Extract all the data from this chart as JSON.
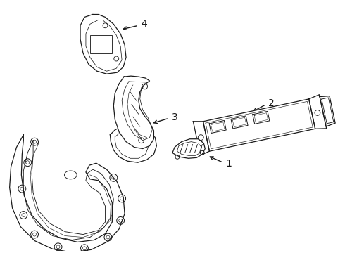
{
  "bg_color": "#ffffff",
  "line_color": "#1a1a1a",
  "line_width": 0.9,
  "fig_w": 4.9,
  "fig_h": 3.6,
  "dpi": 100
}
